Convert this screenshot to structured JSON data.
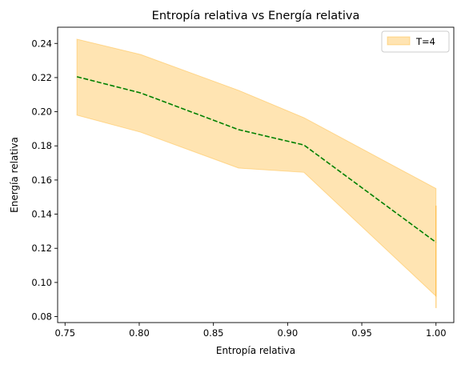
{
  "chart_data": {
    "type": "line",
    "title": "Entropía relativa vs Energía relativa",
    "xlabel": "Entropía relativa",
    "ylabel": "Energía relativa",
    "xlim": [
      0.745,
      1.012
    ],
    "ylim": [
      0.0765,
      0.2495
    ],
    "xticks": [
      "0.75",
      "0.80",
      "0.85",
      "0.90",
      "0.95",
      "1.00"
    ],
    "yticks": [
      "0.08",
      "0.10",
      "0.12",
      "0.14",
      "0.16",
      "0.18",
      "0.20",
      "0.22",
      "0.24"
    ],
    "grid": false,
    "legend_position": "upper right",
    "series": [
      {
        "name": "",
        "kind": "mean_line",
        "color": "#008000",
        "line_style": "dashed",
        "x": [
          0.758,
          0.801,
          0.867,
          0.911,
          1.0
        ],
        "y": [
          0.2205,
          0.211,
          0.1895,
          0.1805,
          0.1235
        ]
      },
      {
        "name": "T=4",
        "kind": "band",
        "color": "#ffa500",
        "opacity": 0.3,
        "x": [
          0.758,
          0.801,
          0.867,
          0.911,
          1.0
        ],
        "y_upper": [
          0.2425,
          0.2335,
          0.2125,
          0.1965,
          0.155
        ],
        "y_lower": [
          0.198,
          0.188,
          0.167,
          0.1645,
          0.092
        ]
      }
    ],
    "annotations": [
      {
        "kind": "vertical_segment",
        "x": 1.0,
        "y_from": 0.085,
        "y_to": 0.145,
        "color": "#ffa500"
      }
    ]
  }
}
